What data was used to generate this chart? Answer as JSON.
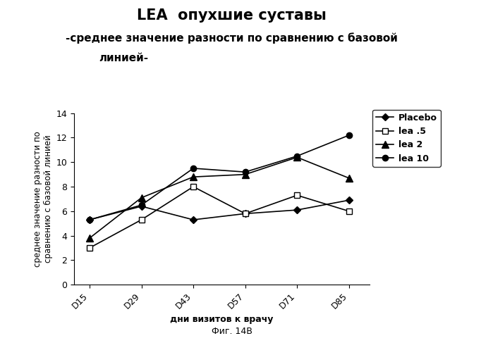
{
  "title1": "LEA  опухшие суставы",
  "subtitle_line1": "-среднее значение разности по сравнению с базовой",
  "subtitle_line2": "линией-",
  "xlabel": "дни визитов к врачу",
  "ylabel": "среднее значение разности по\nсравнению с базовой линией",
  "caption": "Фиг. 14В",
  "x_labels": [
    "D15",
    "D29",
    "D43",
    "D57",
    "D71",
    "D85"
  ],
  "x_values": [
    0,
    1,
    2,
    3,
    4,
    5
  ],
  "series": [
    {
      "label": "Placebo",
      "values": [
        5.3,
        6.4,
        5.3,
        5.8,
        6.1,
        6.9
      ],
      "marker": "D",
      "filled": true
    },
    {
      "label": "lea .5",
      "values": [
        3.0,
        5.3,
        8.0,
        5.8,
        7.3,
        6.0
      ],
      "marker": "s",
      "filled": false
    },
    {
      "label": "lea 2",
      "values": [
        3.8,
        7.1,
        8.8,
        9.0,
        10.4,
        8.7
      ],
      "marker": "^",
      "filled": true
    },
    {
      "label": "lea 10",
      "values": [
        5.3,
        6.5,
        9.5,
        9.2,
        10.5,
        12.2
      ],
      "marker": "o",
      "filled": true
    }
  ],
  "ylim": [
    0,
    14
  ],
  "yticks": [
    0,
    2,
    4,
    6,
    8,
    10,
    12,
    14
  ],
  "background_color": "#ffffff",
  "title1_fontsize": 15,
  "subtitle_fontsize": 11,
  "axis_label_fontsize": 9,
  "tick_fontsize": 9,
  "legend_fontsize": 9,
  "caption_fontsize": 9
}
